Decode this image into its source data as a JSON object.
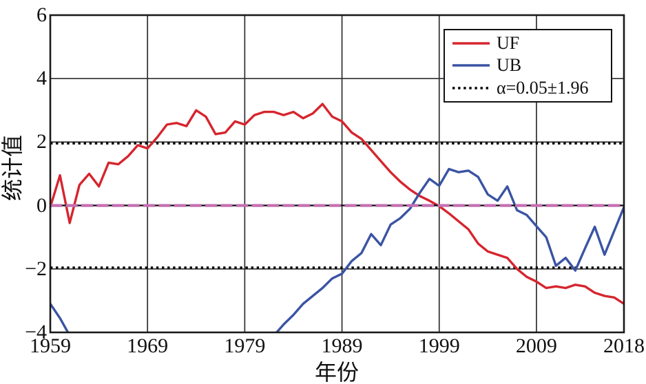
{
  "chart_data": {
    "type": "line",
    "title": "",
    "xlabel": "年份",
    "ylabel": "统计值",
    "xlim": [
      1959,
      2018
    ],
    "ylim": [
      -4,
      6
    ],
    "grid": true,
    "x_ticks": [
      1959,
      1969,
      1979,
      1989,
      1999,
      2009,
      2018
    ],
    "x_tick_labels": [
      "1959",
      "1969",
      "1979",
      "1989",
      "1999",
      "2009",
      "2018"
    ],
    "y_ticks": [
      6,
      4,
      2,
      0,
      -2,
      -4
    ],
    "y_tick_labels": [
      "6",
      "4",
      "2",
      "0",
      "−2",
      "−4"
    ],
    "grid_x_years": [
      1969,
      1979,
      1989,
      1999,
      2009
    ],
    "grid_y_values": [
      4,
      2,
      -2
    ],
    "zero_line": {
      "value": 0,
      "style": "dashed",
      "color": "#c66fb3",
      "base_color": "#111111"
    },
    "threshold_lines": {
      "upper": 1.96,
      "lower": -1.96,
      "style": "dotted",
      "color": "#000000",
      "label": "α=0.05±1.96"
    },
    "colors": {
      "uf": "#d6252e",
      "ub": "#3a53a3",
      "grid": "#2e2e2e",
      "axis": "#1a1a1a",
      "zero_dash": "#c66fb3",
      "threshold": "#000000"
    },
    "x": [
      1959,
      1960,
      1961,
      1962,
      1963,
      1964,
      1965,
      1966,
      1967,
      1968,
      1969,
      1970,
      1971,
      1972,
      1973,
      1974,
      1975,
      1976,
      1977,
      1978,
      1979,
      1980,
      1981,
      1982,
      1983,
      1984,
      1985,
      1986,
      1987,
      1988,
      1989,
      1990,
      1991,
      1992,
      1993,
      1994,
      1995,
      1996,
      1997,
      1998,
      1999,
      2000,
      2001,
      2002,
      2003,
      2004,
      2005,
      2006,
      2007,
      2008,
      2009,
      2010,
      2011,
      2012,
      2013,
      2014,
      2015,
      2016,
      2017,
      2018
    ],
    "series": [
      {
        "name": "UF",
        "color": "#d6252e",
        "values": [
          -0.05,
          0.95,
          -0.55,
          0.65,
          1.0,
          0.6,
          1.35,
          1.3,
          1.55,
          1.9,
          1.8,
          2.15,
          2.55,
          2.6,
          2.5,
          3.0,
          2.8,
          2.25,
          2.3,
          2.65,
          2.55,
          2.85,
          2.95,
          2.95,
          2.85,
          2.95,
          2.75,
          2.9,
          3.2,
          2.8,
          2.65,
          2.3,
          2.1,
          1.75,
          1.4,
          1.05,
          0.75,
          0.5,
          0.3,
          0.15,
          -0.02,
          -0.25,
          -0.5,
          -0.75,
          -1.2,
          -1.45,
          -1.55,
          -1.65,
          -2.0,
          -2.25,
          -2.4,
          -2.6,
          -2.55,
          -2.6,
          -2.5,
          -2.55,
          -2.75,
          -2.85,
          -2.9,
          -3.1
        ]
      },
      {
        "name": "UB",
        "color": "#3a53a3",
        "values": [
          -3.1,
          -3.55,
          -4.1,
          null,
          null,
          null,
          null,
          null,
          null,
          null,
          null,
          null,
          null,
          null,
          null,
          null,
          null,
          null,
          null,
          null,
          null,
          null,
          -4.4,
          -4.1,
          -3.75,
          -3.45,
          -3.1,
          -2.85,
          -2.6,
          -2.3,
          -2.15,
          -1.75,
          -1.5,
          -0.9,
          -1.25,
          -0.6,
          -0.4,
          -0.1,
          0.4,
          0.84,
          0.62,
          1.15,
          1.05,
          1.1,
          0.9,
          0.35,
          0.15,
          0.6,
          -0.15,
          -0.3,
          -0.65,
          -1.0,
          -1.9,
          -1.65,
          -2.05,
          -1.35,
          -0.67,
          -1.55,
          -0.8,
          -0.05
        ]
      }
    ],
    "legend": {
      "position": "upper right",
      "entries": [
        {
          "label": "UF",
          "color": "#d6252e",
          "style": "solid"
        },
        {
          "label": "UB",
          "color": "#3a53a3",
          "style": "solid"
        },
        {
          "label": "α=0.05±1.96",
          "color": "#000000",
          "style": "dotted"
        }
      ]
    }
  }
}
